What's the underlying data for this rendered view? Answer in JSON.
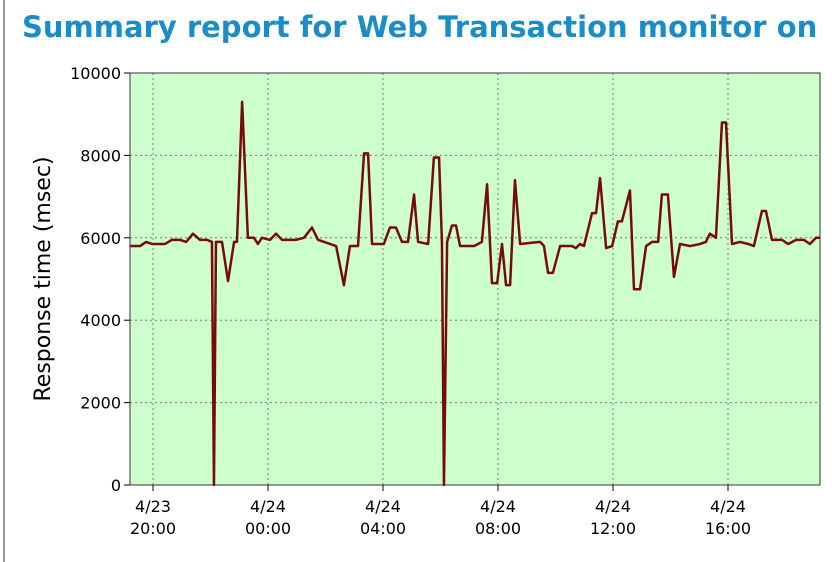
{
  "title": "Summary report for Web Transaction monitor on",
  "chart_data": {
    "type": "line",
    "ylabel": "Response time (msec)",
    "x": [
      19.2,
      19.55,
      19.76,
      19.97,
      20.42,
      20.66,
      20.94,
      21.15,
      21.39,
      21.63,
      21.88,
      22.05,
      22.12,
      22.19,
      22.4,
      22.61,
      22.82,
      22.92,
      23.1,
      23.3,
      23.51,
      23.65,
      23.79,
      24.07,
      24.28,
      24.49,
      24.97,
      25.25,
      25.53,
      25.74,
      26.37,
      26.64,
      26.85,
      27.13,
      27.34,
      27.48,
      27.62,
      28.03,
      28.24,
      28.45,
      28.66,
      28.87,
      29.08,
      29.22,
      29.57,
      29.77,
      29.95,
      30.05,
      30.12,
      30.23,
      30.4,
      30.54,
      30.68,
      31.17,
      31.44,
      31.62,
      31.79,
      31.97,
      32.14,
      32.28,
      32.42,
      32.59,
      32.77,
      33.46,
      33.6,
      33.74,
      33.91,
      34.16,
      34.57,
      34.71,
      34.85,
      34.99,
      35.27,
      35.41,
      35.55,
      35.76,
      35.97,
      36.17,
      36.31,
      36.59,
      36.73,
      36.94,
      37.15,
      37.36,
      37.57,
      37.7,
      37.91,
      38.12,
      38.33,
      38.68,
      39.03,
      39.23,
      39.37,
      39.58,
      39.79,
      39.93,
      40.14,
      40.42,
      40.7,
      40.9,
      41.18,
      41.32,
      41.53,
      41.88,
      42.09,
      42.37,
      42.64,
      42.85,
      43.06,
      43.2
    ],
    "series": [
      {
        "color": "#7a0a0a",
        "values": [
          5800,
          5800,
          5900,
          5850,
          5850,
          5950,
          5950,
          5900,
          6100,
          5950,
          5950,
          5900,
          0,
          5900,
          5900,
          4950,
          5900,
          5900,
          9300,
          6000,
          6000,
          5850,
          6000,
          5950,
          6100,
          5950,
          5950,
          6000,
          6250,
          5950,
          5800,
          4850,
          5800,
          5800,
          8050,
          8050,
          5850,
          5850,
          6250,
          6250,
          5900,
          5900,
          7050,
          5900,
          5850,
          7950,
          7950,
          5900,
          0,
          5900,
          6300,
          6300,
          5800,
          5800,
          5900,
          7300,
          4900,
          4900,
          5850,
          4850,
          4850,
          7400,
          5850,
          5900,
          5800,
          5150,
          5150,
          5800,
          5800,
          5750,
          5850,
          5800,
          6600,
          6600,
          7450,
          5750,
          5800,
          6400,
          6400,
          7150,
          4750,
          4750,
          5800,
          5900,
          5900,
          7050,
          7050,
          5050,
          5850,
          5800,
          5850,
          5900,
          6100,
          6000,
          8800,
          8800,
          5850,
          5900,
          5850,
          5800,
          6650,
          6650,
          5950,
          5950,
          5850,
          5950,
          5950,
          5850,
          6000,
          6000
        ]
      }
    ],
    "xlim": [
      19.2,
      43.2
    ],
    "xticks": [
      {
        "value": 20,
        "label": "4/23 20:00"
      },
      {
        "value": 24,
        "label": "4/24 00:00"
      },
      {
        "value": 28,
        "label": "4/24 04:00"
      },
      {
        "value": 32,
        "label": "4/24 08:00"
      },
      {
        "value": 36,
        "label": "4/24 12:00"
      },
      {
        "value": 40,
        "label": "4/24 16:00"
      }
    ],
    "ylim": [
      0,
      10000
    ],
    "yticks": [
      0,
      2000,
      4000,
      6000,
      8000,
      10000
    ],
    "grid": true,
    "background": "#ccffcc"
  }
}
